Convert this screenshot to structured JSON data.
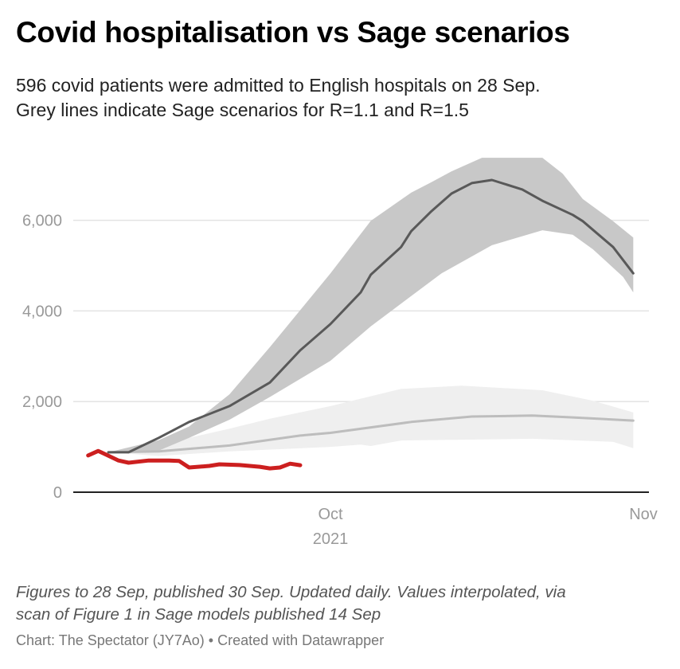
{
  "title": "Covid hospitalisation vs Sage scenarios",
  "subtitle_line1": "596 covid patients were admitted to English hospitals on 28 Sep.",
  "subtitle_line2": "Grey lines indicate Sage scenarios for R=1.1 and R=1.5",
  "notes_line1": "Figures to 28 Sep, published 30 Sep. Updated daily. Values interpolated, via",
  "notes_line2": "scan of Figure 1 in Sage models published 14 Sep",
  "credit": "Chart: The Spectator (JY7Ao) • Created with Datawrapper",
  "chart_data": {
    "type": "line",
    "xlim": [
      "2021-09-07",
      "2021-11-01"
    ],
    "ylim": [
      0,
      7400
    ],
    "grid": true,
    "y_ticks": [
      {
        "value": 0,
        "label": "0"
      },
      {
        "value": 2000,
        "label": "2,000"
      },
      {
        "value": 4000,
        "label": "4,000"
      },
      {
        "value": 6000,
        "label": "6,000"
      }
    ],
    "x_ticks": [
      {
        "date": "2021-10-01",
        "label": "Oct",
        "sublabel": "2021"
      },
      {
        "date": "2021-11-01",
        "label": "Nov",
        "sublabel": ""
      }
    ],
    "colors": {
      "actual": "#cc1f1f",
      "r15_line": "#595959",
      "r15_band": "#c8c8c8",
      "r11_line": "#bdbdbd",
      "r11_band": "#efefef",
      "grid": "#e3e3e3",
      "axis": "#222222",
      "tick_text": "#999999"
    },
    "bands": [
      {
        "scenario": "R=1.1",
        "fill": "r11_band",
        "upper": [
          [
            "2021-09-09",
            880
          ],
          [
            "2021-09-14",
            1050
          ],
          [
            "2021-09-21",
            1400
          ],
          [
            "2021-09-25",
            1620
          ],
          [
            "2021-10-01",
            1900
          ],
          [
            "2021-10-08",
            2280
          ],
          [
            "2021-10-14",
            2350
          ],
          [
            "2021-10-22",
            2250
          ],
          [
            "2021-10-27",
            2020
          ],
          [
            "2021-10-31",
            1760
          ]
        ],
        "lower": [
          [
            "2021-09-09",
            880
          ],
          [
            "2021-09-14",
            800
          ],
          [
            "2021-09-21",
            900
          ],
          [
            "2021-10-01",
            1000
          ],
          [
            "2021-10-04",
            1050
          ],
          [
            "2021-10-05",
            1020
          ],
          [
            "2021-10-08",
            1140
          ],
          [
            "2021-10-21",
            1180
          ],
          [
            "2021-10-29",
            1110
          ],
          [
            "2021-10-31",
            970
          ]
        ]
      },
      {
        "scenario": "R=1.5",
        "fill": "r15_band",
        "upper": [
          [
            "2021-09-09",
            880
          ],
          [
            "2021-09-14",
            1150
          ],
          [
            "2021-09-17",
            1450
          ],
          [
            "2021-09-21",
            2160
          ],
          [
            "2021-09-25",
            3200
          ],
          [
            "2021-10-01",
            4830
          ],
          [
            "2021-10-05",
            5990
          ],
          [
            "2021-10-09",
            6610
          ],
          [
            "2021-10-11",
            6840
          ],
          [
            "2021-10-13",
            7080
          ],
          [
            "2021-10-16",
            7380
          ],
          [
            "2021-10-22",
            7380
          ],
          [
            "2021-10-24",
            7030
          ],
          [
            "2021-10-26",
            6470
          ],
          [
            "2021-10-29",
            5980
          ],
          [
            "2021-10-31",
            5620
          ]
        ],
        "lower": [
          [
            "2021-09-09",
            880
          ],
          [
            "2021-09-14",
            920
          ],
          [
            "2021-09-17",
            1200
          ],
          [
            "2021-09-21",
            1600
          ],
          [
            "2021-09-25",
            2100
          ],
          [
            "2021-10-01",
            2900
          ],
          [
            "2021-10-05",
            3660
          ],
          [
            "2021-10-12",
            4830
          ],
          [
            "2021-10-17",
            5450
          ],
          [
            "2021-10-22",
            5780
          ],
          [
            "2021-10-25",
            5680
          ],
          [
            "2021-10-27",
            5360
          ],
          [
            "2021-10-30",
            4750
          ],
          [
            "2021-10-31",
            4410
          ]
        ]
      }
    ],
    "series": [
      {
        "scenario": "R=1.1",
        "color": "r11_line",
        "width": 3,
        "points": [
          [
            "2021-09-09",
            880
          ],
          [
            "2021-09-14",
            900
          ],
          [
            "2021-09-21",
            1030
          ],
          [
            "2021-09-28",
            1250
          ],
          [
            "2021-10-01",
            1310
          ],
          [
            "2021-10-09",
            1550
          ],
          [
            "2021-10-15",
            1670
          ],
          [
            "2021-10-21",
            1690
          ],
          [
            "2021-10-25",
            1650
          ],
          [
            "2021-10-31",
            1580
          ]
        ]
      },
      {
        "scenario": "R=1.5",
        "color": "r15_line",
        "width": 3,
        "points": [
          [
            "2021-09-09",
            880
          ],
          [
            "2021-09-11",
            880
          ],
          [
            "2021-09-14",
            1200
          ],
          [
            "2021-09-17",
            1550
          ],
          [
            "2021-09-21",
            1900
          ],
          [
            "2021-09-25",
            2420
          ],
          [
            "2021-09-28",
            3130
          ],
          [
            "2021-10-01",
            3710
          ],
          [
            "2021-10-04",
            4410
          ],
          [
            "2021-10-05",
            4800
          ],
          [
            "2021-10-08",
            5410
          ],
          [
            "2021-10-09",
            5760
          ],
          [
            "2021-10-11",
            6200
          ],
          [
            "2021-10-13",
            6590
          ],
          [
            "2021-10-15",
            6820
          ],
          [
            "2021-10-17",
            6890
          ],
          [
            "2021-10-20",
            6680
          ],
          [
            "2021-10-22",
            6430
          ],
          [
            "2021-10-25",
            6120
          ],
          [
            "2021-10-26",
            5980
          ],
          [
            "2021-10-29",
            5410
          ],
          [
            "2021-10-31",
            4830
          ]
        ]
      },
      {
        "scenario": "Actual admissions",
        "color": "actual",
        "width": 5,
        "points": [
          [
            "2021-09-07",
            810
          ],
          [
            "2021-09-08",
            910
          ],
          [
            "2021-09-10",
            700
          ],
          [
            "2021-09-11",
            650
          ],
          [
            "2021-09-13",
            700
          ],
          [
            "2021-09-15",
            700
          ],
          [
            "2021-09-16",
            690
          ],
          [
            "2021-09-17",
            545
          ],
          [
            "2021-09-19",
            580
          ],
          [
            "2021-09-20",
            615
          ],
          [
            "2021-09-22",
            600
          ],
          [
            "2021-09-24",
            560
          ],
          [
            "2021-09-25",
            525
          ],
          [
            "2021-09-26",
            545
          ],
          [
            "2021-09-27",
            630
          ],
          [
            "2021-09-28",
            596
          ]
        ]
      }
    ]
  }
}
